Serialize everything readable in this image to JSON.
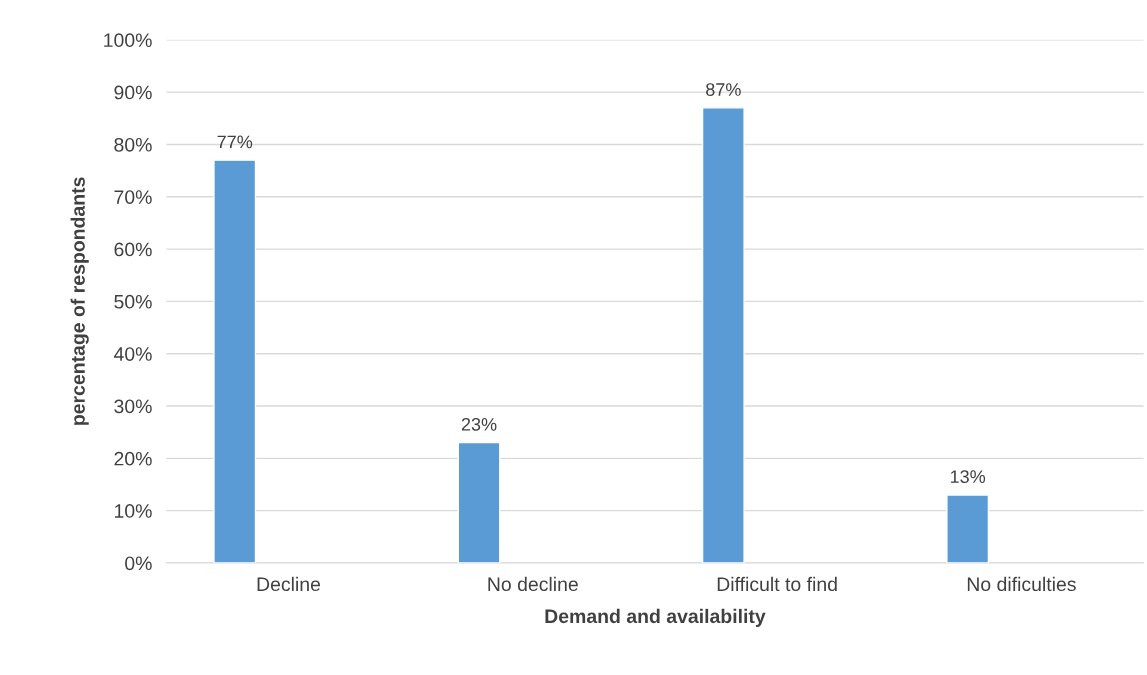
{
  "chart_data": {
    "type": "bar",
    "xlabel": "Demand and availability",
    "ylabel": "percentage of respondants",
    "categories": [
      "Decline",
      "No decline",
      "Difficult to find",
      "No dificulties"
    ],
    "values": [
      77,
      23,
      87,
      13
    ],
    "color": "#5b9bd5",
    "value_labels": [
      "77%",
      "23%",
      "87%",
      "13%"
    ],
    "ylim": [
      0,
      100
    ],
    "yticks": [
      {
        "value": 0,
        "label": "0%"
      },
      {
        "value": 10,
        "label": "10%"
      },
      {
        "value": 20,
        "label": "20%"
      },
      {
        "value": 30,
        "label": "30%"
      },
      {
        "value": 40,
        "label": "40%"
      },
      {
        "value": 50,
        "label": "50%"
      },
      {
        "value": 60,
        "label": "60%"
      },
      {
        "value": 70,
        "label": "70%"
      },
      {
        "value": 80,
        "label": "80%"
      },
      {
        "value": 90,
        "label": "90%"
      },
      {
        "value": 100,
        "label": "100%"
      }
    ],
    "grid": "y",
    "legend": false
  }
}
